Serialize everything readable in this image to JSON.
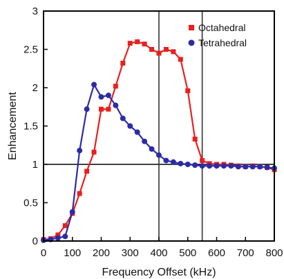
{
  "chart_data": {
    "type": "line",
    "xlabel": "Frequency Offset (kHz)",
    "ylabel": "Enhancement",
    "xlim": [
      0,
      800
    ],
    "ylim": [
      0,
      3
    ],
    "xticks": [
      "0",
      "100",
      "200",
      "300",
      "400",
      "500",
      "600",
      "700",
      "800"
    ],
    "yticks": [
      "0",
      "0.5",
      "1",
      "1.5",
      "2",
      "2.5",
      "3"
    ],
    "grid": false,
    "legend_position": "top-right",
    "reference_lines": {
      "horizontal_y": 1,
      "vertical_x": [
        400,
        550
      ]
    },
    "series": [
      {
        "name": "Octahedral",
        "marker": "square",
        "color": "#e8201e",
        "x": [
          0,
          25,
          50,
          75,
          100,
          125,
          150,
          175,
          200,
          225,
          250,
          275,
          300,
          325,
          350,
          375,
          400,
          425,
          450,
          475,
          500,
          525,
          550,
          575,
          600,
          625,
          650,
          675,
          700,
          725,
          750,
          775,
          800
        ],
        "y": [
          0.02,
          0.03,
          0.08,
          0.2,
          0.36,
          0.62,
          0.91,
          1.16,
          1.72,
          1.72,
          2.02,
          2.32,
          2.58,
          2.6,
          2.57,
          2.5,
          2.45,
          2.5,
          2.47,
          2.37,
          1.96,
          1.33,
          1.05,
          1.01,
          1.0,
          1.0,
          0.99,
          0.98,
          0.97,
          0.98,
          0.97,
          0.96,
          0.93
        ]
      },
      {
        "name": "Tetrahedral",
        "marker": "circle",
        "color": "#2b2ba8",
        "x": [
          0,
          25,
          50,
          75,
          100,
          125,
          150,
          175,
          200,
          225,
          250,
          275,
          300,
          325,
          350,
          375,
          400,
          425,
          450,
          475,
          500,
          525,
          550,
          575,
          600,
          625,
          650,
          675,
          700,
          725,
          750,
          775,
          800
        ],
        "y": [
          0.01,
          0.02,
          0.04,
          0.06,
          0.38,
          1.18,
          1.72,
          2.04,
          1.88,
          1.9,
          1.77,
          1.6,
          1.5,
          1.42,
          1.3,
          1.2,
          1.12,
          1.05,
          1.03,
          1.01,
          1.0,
          0.99,
          0.98,
          0.98,
          0.98,
          0.98,
          0.98,
          0.97,
          0.97,
          0.97,
          0.97,
          0.96,
          0.95
        ]
      }
    ]
  }
}
